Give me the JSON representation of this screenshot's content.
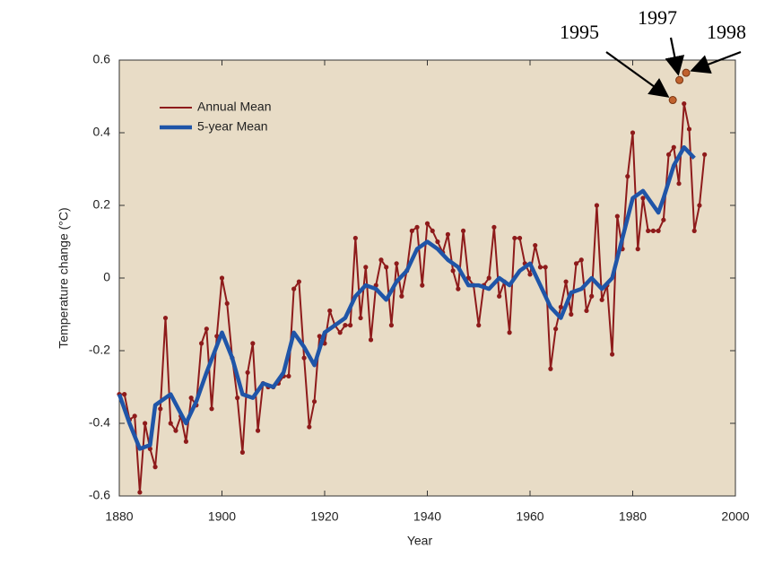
{
  "chart_data": {
    "type": "line",
    "ylabel": "Temperature change (°C)",
    "xlabel": "Year",
    "xlim": [
      1880,
      2000
    ],
    "xticks": [
      1880,
      1900,
      1920,
      1940,
      1960,
      1980,
      2000
    ],
    "ylim": [
      -0.6,
      0.6
    ],
    "yticks": [
      -0.6,
      -0.4,
      -0.2,
      0,
      0.2,
      0.4,
      0.6
    ],
    "legend": "upper left",
    "series": [
      {
        "name": "Annual Mean",
        "color": "#8e1b1b",
        "x": [
          1880,
          1881,
          1882,
          1883,
          1884,
          1885,
          1886,
          1887,
          1888,
          1889,
          1890,
          1891,
          1892,
          1893,
          1894,
          1895,
          1896,
          1897,
          1898,
          1899,
          1900,
          1901,
          1902,
          1903,
          1904,
          1905,
          1906,
          1907,
          1908,
          1909,
          1910,
          1911,
          1912,
          1913,
          1914,
          1915,
          1916,
          1917,
          1918,
          1919,
          1920,
          1921,
          1922,
          1923,
          1924,
          1925,
          1926,
          1927,
          1928,
          1929,
          1930,
          1931,
          1932,
          1933,
          1934,
          1935,
          1936,
          1937,
          1938,
          1939,
          1940,
          1941,
          1942,
          1943,
          1944,
          1945,
          1946,
          1947,
          1948,
          1949,
          1950,
          1951,
          1952,
          1953,
          1954,
          1955,
          1956,
          1957,
          1958,
          1959,
          1960,
          1961,
          1962,
          1963,
          1964,
          1965,
          1966,
          1967,
          1968,
          1969,
          1970,
          1971,
          1972,
          1973,
          1974,
          1975,
          1976,
          1977,
          1978,
          1979,
          1980,
          1981,
          1982,
          1983,
          1984,
          1985,
          1986,
          1987,
          1988,
          1989,
          1990,
          1991,
          1992,
          1993,
          1994
        ],
        "values": [
          -0.32,
          -0.32,
          -0.39,
          -0.38,
          -0.59,
          -0.4,
          -0.47,
          -0.52,
          -0.36,
          -0.11,
          -0.4,
          -0.42,
          -0.38,
          -0.45,
          -0.33,
          -0.35,
          -0.18,
          -0.14,
          -0.36,
          -0.16,
          0.0,
          -0.07,
          -0.22,
          -0.33,
          -0.48,
          -0.26,
          -0.18,
          -0.42,
          -0.29,
          -0.3,
          -0.3,
          -0.29,
          -0.27,
          -0.27,
          -0.03,
          -0.01,
          -0.22,
          -0.41,
          -0.34,
          -0.16,
          -0.18,
          -0.09,
          -0.13,
          -0.15,
          -0.13,
          -0.13,
          0.11,
          -0.11,
          0.03,
          -0.17,
          -0.02,
          0.05,
          0.03,
          -0.13,
          0.04,
          -0.05,
          0.02,
          0.13,
          0.14,
          -0.02,
          0.15,
          0.13,
          0.1,
          0.07,
          0.12,
          0.02,
          -0.03,
          0.13,
          0.0,
          -0.02,
          -0.13,
          -0.02,
          0.0,
          0.14,
          -0.05,
          -0.01,
          -0.15,
          0.11,
          0.11,
          0.04,
          0.01,
          0.09,
          0.03,
          0.03,
          -0.25,
          -0.14,
          -0.08,
          -0.01,
          -0.1,
          0.04,
          0.05,
          -0.09,
          -0.05,
          0.2,
          -0.06,
          -0.02,
          -0.21,
          0.17,
          0.08,
          0.28,
          0.4,
          0.08,
          0.22,
          0.13,
          0.13,
          0.13,
          0.16,
          0.34,
          0.36,
          0.26,
          0.48,
          0.41,
          0.13,
          0.2,
          0.34
        ]
      },
      {
        "name": "5-year Mean",
        "color": "#1f55a8",
        "x": [
          1880,
          1882,
          1884,
          1886,
          1887,
          1890,
          1893,
          1895,
          1897,
          1900,
          1902,
          1904,
          1906,
          1908,
          1910,
          1912,
          1914,
          1916,
          1918,
          1920,
          1922,
          1924,
          1926,
          1928,
          1930,
          1932,
          1934,
          1936,
          1938,
          1940,
          1942,
          1944,
          1946,
          1948,
          1950,
          1952,
          1954,
          1956,
          1958,
          1960,
          1962,
          1964,
          1966,
          1968,
          1970,
          1972,
          1974,
          1976,
          1978,
          1980,
          1982,
          1984,
          1985,
          1986,
          1988,
          1990,
          1992
        ],
        "values": [
          -0.32,
          -0.4,
          -0.47,
          -0.46,
          -0.35,
          -0.32,
          -0.4,
          -0.34,
          -0.26,
          -0.15,
          -0.22,
          -0.32,
          -0.33,
          -0.29,
          -0.3,
          -0.26,
          -0.15,
          -0.19,
          -0.24,
          -0.15,
          -0.13,
          -0.11,
          -0.05,
          -0.02,
          -0.03,
          -0.06,
          -0.01,
          0.02,
          0.08,
          0.1,
          0.08,
          0.05,
          0.03,
          -0.02,
          -0.02,
          -0.03,
          0.0,
          -0.02,
          0.02,
          0.04,
          -0.02,
          -0.08,
          -0.11,
          -0.04,
          -0.03,
          0.0,
          -0.03,
          0.0,
          0.11,
          0.22,
          0.24,
          0.2,
          0.18,
          0.22,
          0.31,
          0.36,
          0.33
        ]
      }
    ],
    "highlights": [
      {
        "label": "1995",
        "x": 1987.8,
        "y": 0.49
      },
      {
        "label": "1997",
        "x": 1989.1,
        "y": 0.545
      },
      {
        "label": "1998",
        "x": 1990.4,
        "y": 0.565
      }
    ]
  }
}
